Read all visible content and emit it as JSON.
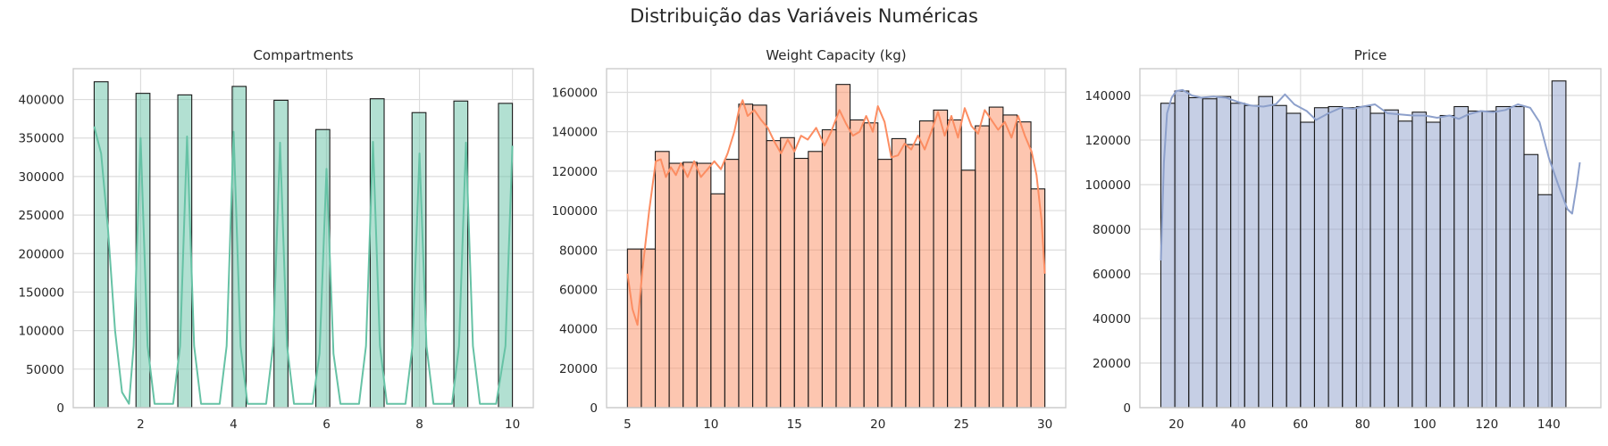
{
  "suptitle": "Distribuição das Variáveis Numéricas",
  "chart_data": [
    {
      "type": "bar",
      "title": "Compartments",
      "xlabel": "",
      "ylabel": "",
      "grid": true,
      "color": "#66c2a5",
      "xlim": [
        0.55,
        10.45
      ],
      "ylim": [
        0,
        440000
      ],
      "xticks": [
        2,
        4,
        6,
        8,
        10
      ],
      "yticks": [
        0,
        50000,
        100000,
        150000,
        200000,
        250000,
        300000,
        350000,
        400000
      ],
      "bars": [
        {
          "x0": 1.0,
          "x1": 1.3,
          "value": 423000
        },
        {
          "x0": 1.9,
          "x1": 2.2,
          "value": 408000
        },
        {
          "x0": 2.8,
          "x1": 3.1,
          "value": 406000
        },
        {
          "x0": 3.97,
          "x1": 4.27,
          "value": 417000
        },
        {
          "x0": 4.87,
          "x1": 5.17,
          "value": 399000
        },
        {
          "x0": 5.77,
          "x1": 6.07,
          "value": 361000
        },
        {
          "x0": 6.94,
          "x1": 7.24,
          "value": 401000
        },
        {
          "x0": 7.84,
          "x1": 8.14,
          "value": 383000
        },
        {
          "x0": 8.74,
          "x1": 9.04,
          "value": 398000
        },
        {
          "x0": 9.7,
          "x1": 10.0,
          "value": 395000
        }
      ],
      "kde": [
        [
          1.0,
          365000
        ],
        [
          1.15,
          330000
        ],
        [
          1.3,
          230000
        ],
        [
          1.45,
          100000
        ],
        [
          1.6,
          20000
        ],
        [
          1.75,
          5000
        ],
        [
          1.85,
          80000
        ],
        [
          2.0,
          350000
        ],
        [
          2.15,
          80000
        ],
        [
          2.3,
          5000
        ],
        [
          2.7,
          5000
        ],
        [
          2.85,
          80000
        ],
        [
          3.0,
          352000
        ],
        [
          3.15,
          80000
        ],
        [
          3.3,
          5000
        ],
        [
          3.7,
          5000
        ],
        [
          3.85,
          80000
        ],
        [
          4.0,
          358000
        ],
        [
          4.15,
          80000
        ],
        [
          4.3,
          5000
        ],
        [
          4.7,
          5000
        ],
        [
          4.85,
          80000
        ],
        [
          5.0,
          344000
        ],
        [
          5.15,
          80000
        ],
        [
          5.3,
          5000
        ],
        [
          5.7,
          5000
        ],
        [
          5.85,
          70000
        ],
        [
          6.0,
          310000
        ],
        [
          6.15,
          70000
        ],
        [
          6.3,
          5000
        ],
        [
          6.7,
          5000
        ],
        [
          6.85,
          80000
        ],
        [
          7.0,
          345000
        ],
        [
          7.15,
          80000
        ],
        [
          7.3,
          5000
        ],
        [
          7.7,
          5000
        ],
        [
          7.85,
          80000
        ],
        [
          8.0,
          330000
        ],
        [
          8.15,
          80000
        ],
        [
          8.3,
          5000
        ],
        [
          8.7,
          5000
        ],
        [
          8.85,
          80000
        ],
        [
          9.0,
          344000
        ],
        [
          9.15,
          80000
        ],
        [
          9.3,
          5000
        ],
        [
          9.65,
          5000
        ],
        [
          9.85,
          80000
        ],
        [
          10.0,
          340000
        ]
      ]
    },
    {
      "type": "bar",
      "title": "Weight Capacity (kg)",
      "xlabel": "",
      "ylabel": "",
      "grid": true,
      "color": "#fc8d62",
      "xlim": [
        3.75,
        31.25
      ],
      "ylim": [
        0,
        172000
      ],
      "xticks": [
        5,
        10,
        15,
        20,
        25,
        30
      ],
      "yticks": [
        0,
        20000,
        40000,
        60000,
        80000,
        100000,
        120000,
        140000,
        160000
      ],
      "bin_start": 5,
      "bin_width": 0.8333,
      "values": [
        80500,
        80500,
        130000,
        124000,
        124500,
        124000,
        108500,
        126000,
        154000,
        153500,
        135500,
        137000,
        126500,
        130000,
        141000,
        164000,
        146000,
        144500,
        126000,
        136500,
        133500,
        145500,
        151000,
        146000,
        120500,
        143000,
        152500,
        148500,
        145000,
        111000
      ],
      "kde": [
        [
          5.0,
          68000
        ],
        [
          5.3,
          50000
        ],
        [
          5.6,
          42000
        ],
        [
          5.9,
          70000
        ],
        [
          6.3,
          100000
        ],
        [
          6.7,
          125000
        ],
        [
          7.0,
          126000
        ],
        [
          7.3,
          117000
        ],
        [
          7.6,
          122000
        ],
        [
          7.9,
          118000
        ],
        [
          8.2,
          124000
        ],
        [
          8.6,
          117000
        ],
        [
          9.0,
          125000
        ],
        [
          9.4,
          117000
        ],
        [
          9.8,
          121000
        ],
        [
          10.2,
          125000
        ],
        [
          10.6,
          121000
        ],
        [
          11.0,
          129000
        ],
        [
          11.4,
          140000
        ],
        [
          11.7,
          152000
        ],
        [
          11.9,
          156000
        ],
        [
          12.2,
          148000
        ],
        [
          12.6,
          151000
        ],
        [
          13.0,
          146000
        ],
        [
          13.4,
          142000
        ],
        [
          13.8,
          135000
        ],
        [
          14.2,
          129000
        ],
        [
          14.6,
          136000
        ],
        [
          15.0,
          130000
        ],
        [
          15.4,
          138000
        ],
        [
          15.8,
          136000
        ],
        [
          16.3,
          142000
        ],
        [
          16.8,
          133000
        ],
        [
          17.2,
          140000
        ],
        [
          17.7,
          151000
        ],
        [
          18.1,
          144000
        ],
        [
          18.5,
          138000
        ],
        [
          18.9,
          140000
        ],
        [
          19.3,
          148000
        ],
        [
          19.7,
          140000
        ],
        [
          20.0,
          153000
        ],
        [
          20.4,
          145000
        ],
        [
          20.8,
          127000
        ],
        [
          21.2,
          128000
        ],
        [
          21.6,
          134000
        ],
        [
          22.0,
          131000
        ],
        [
          22.4,
          138000
        ],
        [
          22.8,
          131000
        ],
        [
          23.2,
          140000
        ],
        [
          23.6,
          150000
        ],
        [
          24.0,
          138000
        ],
        [
          24.4,
          148000
        ],
        [
          24.8,
          137000
        ],
        [
          25.2,
          152000
        ],
        [
          25.6,
          143000
        ],
        [
          26.0,
          139000
        ],
        [
          26.4,
          151000
        ],
        [
          26.8,
          146000
        ],
        [
          27.2,
          141000
        ],
        [
          27.6,
          145000
        ],
        [
          28.0,
          137000
        ],
        [
          28.4,
          148000
        ],
        [
          28.8,
          138000
        ],
        [
          29.2,
          130000
        ],
        [
          29.5,
          118000
        ],
        [
          29.8,
          95000
        ],
        [
          30.0,
          68000
        ]
      ]
    },
    {
      "type": "bar",
      "title": "Price",
      "xlabel": "",
      "ylabel": "",
      "grid": true,
      "color": "#8da0cb",
      "xlim": [
        8.25,
        156.75
      ],
      "ylim": [
        0,
        152000
      ],
      "xticks": [
        20,
        40,
        60,
        80,
        100,
        120,
        140
      ],
      "yticks": [
        0,
        20000,
        40000,
        60000,
        80000,
        100000,
        120000,
        140000
      ],
      "bin_start": 15,
      "bin_width": 4.5,
      "values": [
        136500,
        142000,
        139000,
        138500,
        139500,
        136500,
        135500,
        139500,
        135500,
        132000,
        128000,
        134500,
        135000,
        134500,
        135000,
        132000,
        133500,
        128500,
        132500,
        128000,
        131000,
        135000,
        133000,
        133000,
        135000,
        135000,
        113500,
        95500,
        146500,
        0
      ],
      "kde": [
        [
          15.0,
          66000
        ],
        [
          16.0,
          110000
        ],
        [
          17.0,
          132000
        ],
        [
          18.5,
          139000
        ],
        [
          20.0,
          142000
        ],
        [
          22.0,
          142500
        ],
        [
          25.0,
          140000
        ],
        [
          28.0,
          139000
        ],
        [
          32.0,
          139500
        ],
        [
          36.0,
          139000
        ],
        [
          40.0,
          137000
        ],
        [
          44.0,
          135500
        ],
        [
          48.0,
          135000
        ],
        [
          52.0,
          136000
        ],
        [
          55.0,
          140500
        ],
        [
          58.0,
          136000
        ],
        [
          62.0,
          133000
        ],
        [
          65.0,
          129000
        ],
        [
          69.0,
          132000
        ],
        [
          73.0,
          134500
        ],
        [
          77.0,
          134000
        ],
        [
          80.0,
          135000
        ],
        [
          84.0,
          136000
        ],
        [
          88.0,
          132000
        ],
        [
          92.0,
          131500
        ],
        [
          96.0,
          131000
        ],
        [
          100.0,
          131000
        ],
        [
          104.0,
          130000
        ],
        [
          108.0,
          131000
        ],
        [
          111.0,
          129500
        ],
        [
          114.0,
          131500
        ],
        [
          118.0,
          133000
        ],
        [
          122.0,
          132500
        ],
        [
          126.0,
          133500
        ],
        [
          130.0,
          136000
        ],
        [
          134.0,
          134500
        ],
        [
          137.0,
          128000
        ],
        [
          140.0,
          112000
        ],
        [
          143.0,
          100000
        ],
        [
          146.0,
          89000
        ],
        [
          147.5,
          87000
        ],
        [
          149.0,
          100000
        ],
        [
          150.0,
          110000
        ]
      ]
    }
  ]
}
